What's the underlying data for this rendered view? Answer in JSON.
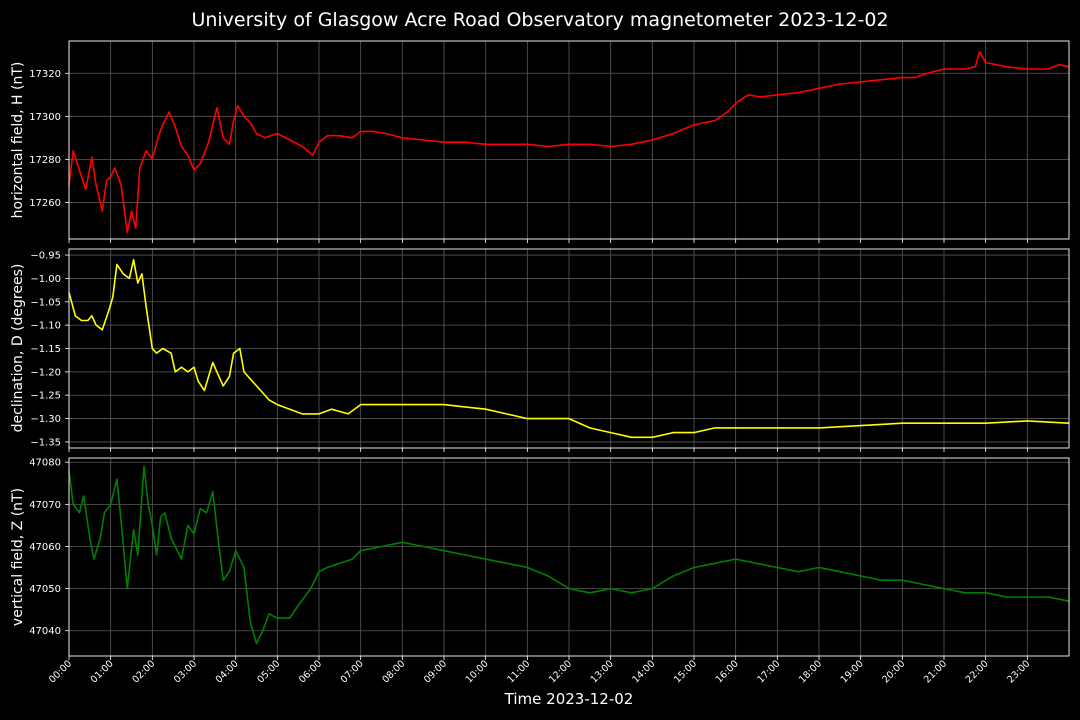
{
  "title": "University of Glasgow Acre Road Observatory magnetometer 2023-12-02",
  "xlabel": "Time 2023-12-02",
  "chart_data": [
    {
      "type": "line",
      "ylabel": "horizontal field, H (nT)",
      "color": "#ff0000",
      "ylim": [
        17243,
        17335
      ],
      "yticks": [
        17260,
        17280,
        17300,
        17320
      ],
      "ytick_labels": [
        "17260",
        "17280",
        "17300",
        "17320"
      ],
      "grid": true,
      "x_hours": [
        0,
        0.1,
        0.25,
        0.4,
        0.55,
        0.65,
        0.8,
        0.9,
        1.0,
        1.1,
        1.25,
        1.4,
        1.5,
        1.6,
        1.7,
        1.85,
        2.0,
        2.15,
        2.25,
        2.4,
        2.55,
        2.7,
        2.85,
        3.0,
        3.15,
        3.35,
        3.55,
        3.7,
        3.85,
        3.95,
        4.05,
        4.2,
        4.35,
        4.5,
        4.7,
        5.0,
        5.3,
        5.6,
        5.85,
        6.0,
        6.2,
        6.5,
        6.8,
        7.0,
        7.3,
        7.6,
        8.0,
        8.5,
        9.0,
        9.5,
        10.0,
        10.5,
        11.0,
        11.5,
        12.0,
        12.5,
        13.0,
        13.5,
        14.0,
        14.5,
        15.0,
        15.5,
        15.8,
        16.0,
        16.3,
        16.6,
        17.0,
        17.5,
        18.0,
        18.5,
        19.0,
        19.5,
        20.0,
        20.3,
        20.6,
        21.0,
        21.5,
        21.75,
        21.85,
        22.0,
        22.5,
        23.0,
        23.5,
        23.75,
        24.0
      ],
      "values": [
        17268,
        17284,
        17275,
        17266,
        17281,
        17268,
        17256,
        17270,
        17272,
        17276,
        17268,
        17246,
        17256,
        17248,
        17276,
        17284,
        17280,
        17291,
        17296,
        17302,
        17295,
        17286,
        17282,
        17275,
        17278,
        17288,
        17304,
        17290,
        17287,
        17298,
        17305,
        17300,
        17297,
        17292,
        17290,
        17292,
        17289,
        17286,
        17282,
        17288,
        17291,
        17291,
        17290,
        17293,
        17293,
        17292,
        17290,
        17289,
        17288,
        17288,
        17287,
        17287,
        17287,
        17286,
        17287,
        17287,
        17286,
        17287,
        17289,
        17292,
        17296,
        17298,
        17302,
        17306,
        17310,
        17309,
        17310,
        17311,
        17313,
        17315,
        17316,
        17317,
        17318,
        17318,
        17320,
        17322,
        17322,
        17323,
        17330,
        17325,
        17323,
        17322,
        17322,
        17324,
        17323
      ]
    },
    {
      "type": "line",
      "ylabel": "declination, D (degrees)",
      "color": "#ffff00",
      "ylim": [
        -1.363,
        -0.937
      ],
      "yticks": [
        -0.95,
        -1.0,
        -1.05,
        -1.1,
        -1.15,
        -1.2,
        -1.25,
        -1.3,
        -1.35
      ],
      "ytick_labels": [
        "−0.95",
        "−1.00",
        "−1.05",
        "−1.10",
        "−1.15",
        "−1.20",
        "−1.25",
        "−1.30",
        "−1.35"
      ],
      "grid": true,
      "x_hours": [
        0,
        0.15,
        0.3,
        0.45,
        0.55,
        0.65,
        0.8,
        0.95,
        1.05,
        1.15,
        1.3,
        1.45,
        1.55,
        1.65,
        1.75,
        1.85,
        2.0,
        2.1,
        2.25,
        2.45,
        2.55,
        2.7,
        2.85,
        3.0,
        3.1,
        3.25,
        3.45,
        3.55,
        3.7,
        3.85,
        3.95,
        4.1,
        4.2,
        4.4,
        4.6,
        4.8,
        5.0,
        5.3,
        5.6,
        6.0,
        6.3,
        6.7,
        7.0,
        7.2,
        7.5,
        8.0,
        8.5,
        9.0,
        9.5,
        10.0,
        10.5,
        11.0,
        11.5,
        12.0,
        12.5,
        13.0,
        13.5,
        14.0,
        14.5,
        15.0,
        15.5,
        16.0,
        16.5,
        17.0,
        18.0,
        19.0,
        20.0,
        21.0,
        22.0,
        23.0,
        24.0
      ],
      "values": [
        -1.03,
        -1.08,
        -1.09,
        -1.09,
        -1.08,
        -1.1,
        -1.11,
        -1.07,
        -1.04,
        -0.97,
        -0.99,
        -1.0,
        -0.96,
        -1.01,
        -0.99,
        -1.06,
        -1.15,
        -1.16,
        -1.15,
        -1.16,
        -1.2,
        -1.19,
        -1.2,
        -1.19,
        -1.22,
        -1.24,
        -1.18,
        -1.2,
        -1.23,
        -1.21,
        -1.16,
        -1.15,
        -1.2,
        -1.22,
        -1.24,
        -1.26,
        -1.27,
        -1.28,
        -1.29,
        -1.29,
        -1.28,
        -1.29,
        -1.27,
        -1.27,
        -1.27,
        -1.27,
        -1.27,
        -1.27,
        -1.275,
        -1.28,
        -1.29,
        -1.3,
        -1.3,
        -1.3,
        -1.32,
        -1.33,
        -1.34,
        -1.34,
        -1.33,
        -1.33,
        -1.32,
        -1.32,
        -1.32,
        -1.32,
        -1.32,
        -1.315,
        -1.31,
        -1.31,
        -1.31,
        -1.305,
        -1.31
      ]
    },
    {
      "type": "line",
      "ylabel": "vertical field, Z (nT)",
      "color": "#008000",
      "ylim": [
        47034,
        47081
      ],
      "yticks": [
        47040,
        47050,
        47060,
        47070,
        47080
      ],
      "ytick_labels": [
        "47040",
        "47050",
        "47060",
        "47070",
        "47080"
      ],
      "grid": true,
      "x_hours": [
        0,
        0.1,
        0.25,
        0.35,
        0.5,
        0.6,
        0.75,
        0.85,
        1.0,
        1.15,
        1.25,
        1.4,
        1.55,
        1.65,
        1.8,
        1.9,
        2.0,
        2.1,
        2.2,
        2.3,
        2.45,
        2.55,
        2.7,
        2.85,
        3.0,
        3.15,
        3.3,
        3.45,
        3.6,
        3.7,
        3.85,
        4.0,
        4.2,
        4.35,
        4.5,
        4.65,
        4.8,
        5.0,
        5.3,
        5.5,
        5.8,
        6.0,
        6.2,
        6.5,
        6.8,
        7.0,
        7.5,
        8.0,
        8.5,
        9.0,
        9.5,
        10.0,
        10.5,
        11.0,
        11.5,
        12.0,
        12.5,
        13.0,
        13.5,
        14.0,
        14.5,
        15.0,
        15.5,
        16.0,
        16.5,
        17.0,
        17.5,
        18.0,
        18.5,
        19.0,
        19.5,
        20.0,
        20.5,
        21.0,
        21.5,
        22.0,
        22.5,
        23.0,
        23.5,
        24.0
      ],
      "values": [
        47078,
        47070,
        47068,
        47072,
        47062,
        47057,
        47062,
        47068,
        47070,
        47076,
        47066,
        47050,
        47064,
        47058,
        47079,
        47070,
        47065,
        47058,
        47067,
        47068,
        47062,
        47060,
        47057,
        47065,
        47063,
        47069,
        47068,
        47073,
        47060,
        47052,
        47054,
        47059,
        47055,
        47042,
        47037,
        47040,
        47044,
        47043,
        47043,
        47046,
        47050,
        47054,
        47055,
        47056,
        47057,
        47059,
        47060,
        47061,
        47060,
        47059,
        47058,
        47057,
        47056,
        47055,
        47053,
        47050,
        47049,
        47050,
        47049,
        47050,
        47053,
        47055,
        47056,
        47057,
        47056,
        47055,
        47054,
        47055,
        47054,
        47053,
        47052,
        47052,
        47051,
        47050,
        47049,
        47049,
        47048,
        47048,
        47048,
        47047
      ]
    }
  ],
  "x_tick_labels": [
    "00:00",
    "01:00",
    "02:00",
    "03:00",
    "04:00",
    "05:00",
    "06:00",
    "07:00",
    "08:00",
    "09:00",
    "10:00",
    "11:00",
    "12:00",
    "13:00",
    "14:00",
    "15:00",
    "16:00",
    "17:00",
    "18:00",
    "19:00",
    "20:00",
    "21:00",
    "22:00",
    "23:00"
  ],
  "xlim": [
    0,
    24
  ]
}
